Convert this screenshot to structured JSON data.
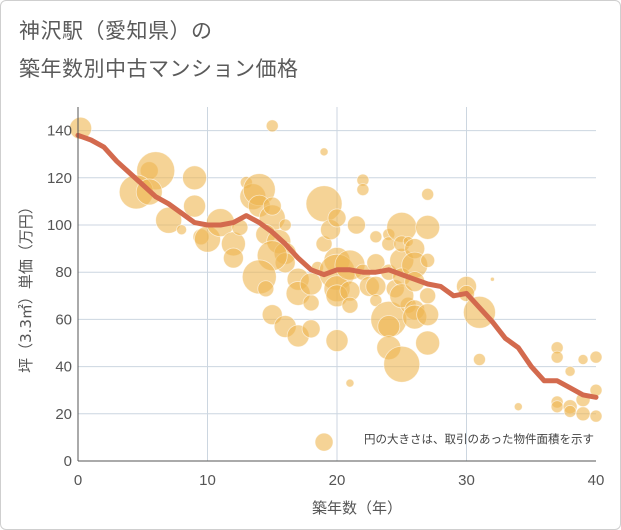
{
  "title_line1": "神沢駅（愛知県）の",
  "title_line2": "築年数別中古マンション価格",
  "chart_data": {
    "type": "scatter",
    "xlabel": "築年数（年）",
    "ylabel": "坪（3.3㎡）単価（万円）",
    "xlim": [
      0,
      40
    ],
    "ylim": [
      0,
      150
    ],
    "xticks": [
      "0",
      "10",
      "20",
      "30",
      "40"
    ],
    "yticks": [
      "0",
      "20",
      "40",
      "60",
      "80",
      "100",
      "120",
      "140"
    ],
    "grid": true,
    "note": "円の大きさは、取引のあった物件面積を示す",
    "colors": {
      "bubble": "#efb550",
      "trend": "#d36a4e",
      "grid": "#ccd6e0"
    },
    "bubbles": [
      {
        "x": 0.2,
        "y": 141,
        "s": 11
      },
      {
        "x": 5.5,
        "y": 123,
        "s": 9
      },
      {
        "x": 6,
        "y": 123,
        "s": 19
      },
      {
        "x": 4.5,
        "y": 114,
        "s": 17
      },
      {
        "x": 5.5,
        "y": 114,
        "s": 13
      },
      {
        "x": 7,
        "y": 102,
        "s": 13
      },
      {
        "x": 9,
        "y": 120,
        "s": 12
      },
      {
        "x": 8,
        "y": 98,
        "s": 5
      },
      {
        "x": 9,
        "y": 108,
        "s": 11
      },
      {
        "x": 9.5,
        "y": 95,
        "s": 8
      },
      {
        "x": 10,
        "y": 94,
        "s": 13
      },
      {
        "x": 11,
        "y": 101,
        "s": 14
      },
      {
        "x": 12,
        "y": 92,
        "s": 12
      },
      {
        "x": 12,
        "y": 86,
        "s": 10
      },
      {
        "x": 12.5,
        "y": 99,
        "s": 8
      },
      {
        "x": 13,
        "y": 118,
        "s": 6
      },
      {
        "x": 13.5,
        "y": 112,
        "s": 13
      },
      {
        "x": 14,
        "y": 115,
        "s": 16
      },
      {
        "x": 14,
        "y": 108,
        "s": 11
      },
      {
        "x": 15,
        "y": 103,
        "s": 13
      },
      {
        "x": 15,
        "y": 108,
        "s": 9
      },
      {
        "x": 15,
        "y": 142,
        "s": 6
      },
      {
        "x": 14.5,
        "y": 96,
        "s": 10
      },
      {
        "x": 15.5,
        "y": 93,
        "s": 12
      },
      {
        "x": 16,
        "y": 100,
        "s": 6
      },
      {
        "x": 16,
        "y": 88,
        "s": 11
      },
      {
        "x": 16,
        "y": 84,
        "s": 10
      },
      {
        "x": 15,
        "y": 87,
        "s": 15
      },
      {
        "x": 14,
        "y": 78,
        "s": 17
      },
      {
        "x": 14.5,
        "y": 73,
        "s": 8
      },
      {
        "x": 15,
        "y": 62,
        "s": 10
      },
      {
        "x": 16,
        "y": 57,
        "s": 11
      },
      {
        "x": 17,
        "y": 53,
        "s": 11
      },
      {
        "x": 17,
        "y": 77,
        "s": 11
      },
      {
        "x": 17,
        "y": 71,
        "s": 12
      },
      {
        "x": 18,
        "y": 67,
        "s": 8
      },
      {
        "x": 18,
        "y": 75,
        "s": 11
      },
      {
        "x": 18.5,
        "y": 82,
        "s": 6
      },
      {
        "x": 18,
        "y": 56,
        "s": 9
      },
      {
        "x": 19,
        "y": 131,
        "s": 4
      },
      {
        "x": 19,
        "y": 109,
        "s": 18
      },
      {
        "x": 19,
        "y": 92,
        "s": 8
      },
      {
        "x": 19.5,
        "y": 98,
        "s": 10
      },
      {
        "x": 20,
        "y": 103,
        "s": 9
      },
      {
        "x": 20,
        "y": 85,
        "s": 13
      },
      {
        "x": 20,
        "y": 80,
        "s": 18
      },
      {
        "x": 20,
        "y": 73,
        "s": 13
      },
      {
        "x": 20,
        "y": 70,
        "s": 11
      },
      {
        "x": 20,
        "y": 51,
        "s": 11
      },
      {
        "x": 21,
        "y": 83,
        "s": 15
      },
      {
        "x": 21,
        "y": 72,
        "s": 10
      },
      {
        "x": 21,
        "y": 66,
        "s": 8
      },
      {
        "x": 21,
        "y": 33,
        "s": 4
      },
      {
        "x": 21.5,
        "y": 100,
        "s": 9
      },
      {
        "x": 22,
        "y": 119,
        "s": 6
      },
      {
        "x": 22,
        "y": 115,
        "s": 6
      },
      {
        "x": 22,
        "y": 80,
        "s": 8
      },
      {
        "x": 22.5,
        "y": 74,
        "s": 10
      },
      {
        "x": 23,
        "y": 95,
        "s": 6
      },
      {
        "x": 23,
        "y": 84,
        "s": 9
      },
      {
        "x": 23,
        "y": 74,
        "s": 10
      },
      {
        "x": 23,
        "y": 68,
        "s": 6
      },
      {
        "x": 24,
        "y": 96,
        "s": 6
      },
      {
        "x": 24,
        "y": 92,
        "s": 7
      },
      {
        "x": 24,
        "y": 80,
        "s": 8
      },
      {
        "x": 24,
        "y": 60,
        "s": 18
      },
      {
        "x": 24,
        "y": 57,
        "s": 11
      },
      {
        "x": 24,
        "y": 48,
        "s": 12
      },
      {
        "x": 24.5,
        "y": 73,
        "s": 9
      },
      {
        "x": 25,
        "y": 99,
        "s": 15
      },
      {
        "x": 25,
        "y": 85,
        "s": 12
      },
      {
        "x": 25,
        "y": 92,
        "s": 8
      },
      {
        "x": 25,
        "y": 78,
        "s": 9
      },
      {
        "x": 25,
        "y": 41,
        "s": 18
      },
      {
        "x": 25.5,
        "y": 66,
        "s": 8
      },
      {
        "x": 25,
        "y": 70,
        "s": 12
      },
      {
        "x": 25.5,
        "y": 93,
        "s": 5
      },
      {
        "x": 26,
        "y": 90,
        "s": 10
      },
      {
        "x": 26,
        "y": 83,
        "s": 13
      },
      {
        "x": 26,
        "y": 76,
        "s": 10
      },
      {
        "x": 26,
        "y": 64,
        "s": 10
      },
      {
        "x": 26,
        "y": 61,
        "s": 12
      },
      {
        "x": 27,
        "y": 113,
        "s": 6
      },
      {
        "x": 27,
        "y": 99,
        "s": 12
      },
      {
        "x": 27,
        "y": 85,
        "s": 7
      },
      {
        "x": 27,
        "y": 70,
        "s": 8
      },
      {
        "x": 27,
        "y": 62,
        "s": 11
      },
      {
        "x": 27,
        "y": 50,
        "s": 12
      },
      {
        "x": 30,
        "y": 74,
        "s": 10
      },
      {
        "x": 30,
        "y": 71,
        "s": 8
      },
      {
        "x": 31,
        "y": 63,
        "s": 16
      },
      {
        "x": 31,
        "y": 43,
        "s": 6
      },
      {
        "x": 32,
        "y": 77,
        "s": 2
      },
      {
        "x": 34,
        "y": 23,
        "s": 4
      },
      {
        "x": 37,
        "y": 48,
        "s": 6
      },
      {
        "x": 37,
        "y": 44,
        "s": 6
      },
      {
        "x": 37,
        "y": 25,
        "s": 6
      },
      {
        "x": 37,
        "y": 23,
        "s": 6
      },
      {
        "x": 38,
        "y": 38,
        "s": 5
      },
      {
        "x": 38,
        "y": 23,
        "s": 7
      },
      {
        "x": 38,
        "y": 21,
        "s": 6
      },
      {
        "x": 39,
        "y": 43,
        "s": 5
      },
      {
        "x": 39,
        "y": 26,
        "s": 7
      },
      {
        "x": 39,
        "y": 20,
        "s": 7
      },
      {
        "x": 40,
        "y": 44,
        "s": 6
      },
      {
        "x": 40,
        "y": 30,
        "s": 6
      },
      {
        "x": 40,
        "y": 19,
        "s": 6
      },
      {
        "x": 19,
        "y": 8,
        "s": 9
      }
    ],
    "trend": [
      [
        0,
        138
      ],
      [
        1,
        136
      ],
      [
        2,
        133
      ],
      [
        3,
        127
      ],
      [
        4,
        122
      ],
      [
        5,
        117
      ],
      [
        6,
        112
      ],
      [
        7,
        109
      ],
      [
        8,
        105
      ],
      [
        9,
        101
      ],
      [
        10,
        100
      ],
      [
        11,
        100
      ],
      [
        12,
        101
      ],
      [
        13,
        104
      ],
      [
        14,
        101
      ],
      [
        15,
        97
      ],
      [
        16,
        92
      ],
      [
        17,
        86
      ],
      [
        18,
        81
      ],
      [
        19,
        79
      ],
      [
        20,
        81
      ],
      [
        21,
        81
      ],
      [
        22,
        80
      ],
      [
        23,
        80
      ],
      [
        24,
        81
      ],
      [
        25,
        79
      ],
      [
        26,
        77
      ],
      [
        27,
        75
      ],
      [
        28,
        74
      ],
      [
        29,
        70
      ],
      [
        30,
        71
      ],
      [
        31,
        65
      ],
      [
        32,
        59
      ],
      [
        33,
        52
      ],
      [
        34,
        48
      ],
      [
        35,
        40
      ],
      [
        36,
        34
      ],
      [
        37,
        34
      ],
      [
        38,
        31
      ],
      [
        39,
        28
      ],
      [
        40,
        27
      ]
    ]
  }
}
